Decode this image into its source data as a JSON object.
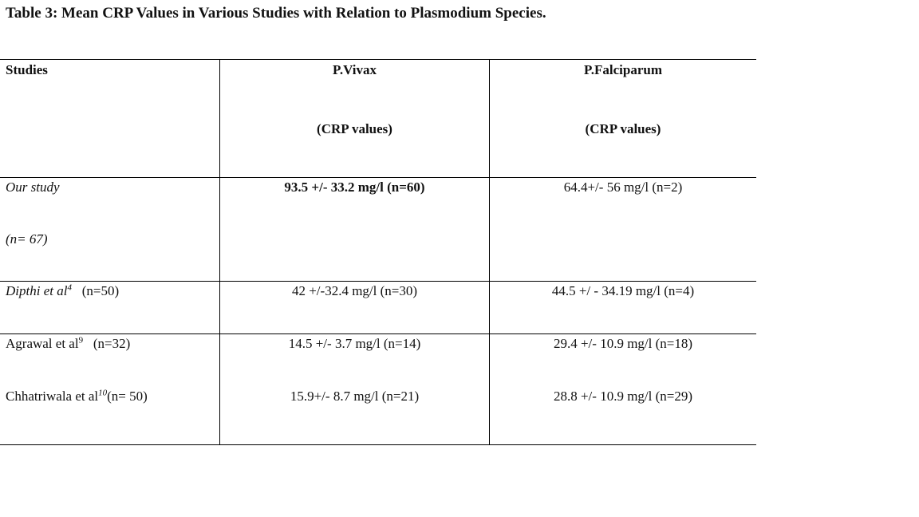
{
  "title": "Table 3: Mean CRP Values in Various Studies with Relation to Plasmodium Species.",
  "headers": {
    "studies": "Studies",
    "vivax": "P.Vivax",
    "vivax_sub": "(CRP values)",
    "falciparum": "P.Falciparum",
    "falciparum_sub": "(CRP values)"
  },
  "rows": [
    {
      "study": "Our study",
      "study_n": "(n= 67)",
      "vivax": "93.5 +/- 33.2 mg/l (n=60)",
      "falciparum": "64.4+/- 56 mg/l (n=2)"
    },
    {
      "study": "Dipthi et al",
      "ref": "4",
      "study_n": "(n=50)",
      "vivax": "42 +/-32.4 mg/l (n=30)",
      "falciparum": "44.5 +/ - 34.19 mg/l (n=4)"
    },
    {
      "study": "Agrawal et al",
      "ref": "9",
      "study_n": "(n=32)",
      "vivax": "14.5 +/- 3.7 mg/l (n=14)",
      "falciparum": "29.4 +/- 10.9 mg/l (n=18)"
    },
    {
      "study": "Chhatriwala et al",
      "ref": "10",
      "study_n": "(n= 50)",
      "vivax": "15.9+/- 8.7 mg/l (n=21)",
      "falciparum": "28.8 +/- 10.9 mg/l (n=29)"
    }
  ]
}
